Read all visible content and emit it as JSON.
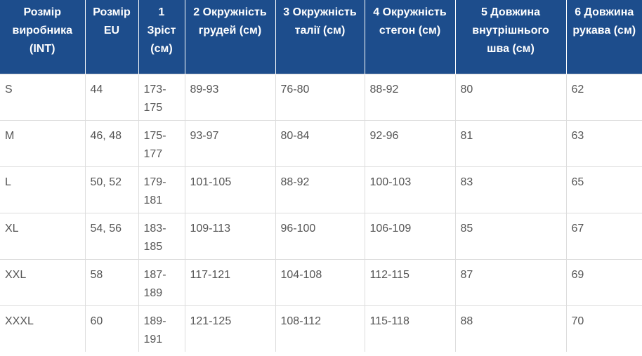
{
  "table": {
    "header": [
      "Розмір виробника (INT)",
      "Розмір EU",
      "1 Зріст (см)",
      "2 Окружність грудей (см)",
      "3 Окружність талії (см)",
      "4 Окружність стегон (см)",
      "5 Довжина внутрішнього шва (см)",
      "6 Довжина рукава (см)"
    ],
    "rows": [
      [
        "S",
        "44",
        "173-175",
        "89-93",
        "76-80",
        "88-92",
        "80",
        "62"
      ],
      [
        "M",
        "46, 48",
        "175-177",
        "93-97",
        "80-84",
        "92-96",
        "81",
        "63"
      ],
      [
        "L",
        "50, 52",
        "179-181",
        "101-105",
        "88-92",
        "100-103",
        "83",
        "65"
      ],
      [
        "XL",
        "54, 56",
        "183-185",
        "109-113",
        "96-100",
        "106-109",
        "85",
        "67"
      ],
      [
        "XXL",
        "58",
        "187-189",
        "117-121",
        "104-108",
        "112-115",
        "87",
        "69"
      ],
      [
        "XXXL",
        "60",
        "189-191",
        "121-125",
        "108-112",
        "115-118",
        "88",
        "70"
      ]
    ]
  }
}
